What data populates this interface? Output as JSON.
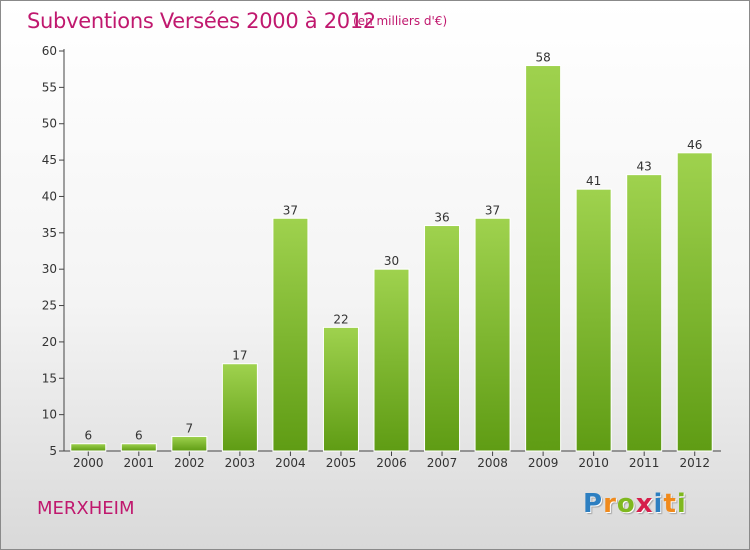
{
  "header": {
    "title": "Subventions Versées 2000 à 2012",
    "unit": "(en milliers d'€)"
  },
  "footer": {
    "commune": "MERXHEIM",
    "logo_letters": [
      "P",
      "r",
      "o",
      "x",
      "i",
      "t",
      "i"
    ],
    "logo_colors": [
      "#2d7fc1",
      "#f08a1c",
      "#7fb81f",
      "#d61f4b",
      "#2d7fc1",
      "#f08a1c",
      "#7fb81f"
    ]
  },
  "colors": {
    "bar_top": "#9fd24e",
    "bar_bottom": "#5f9c14",
    "accent": "#c0186e"
  },
  "chart_data": {
    "type": "bar",
    "title": "Subventions Versées 2000 à 2012",
    "subtitle": "(en milliers d'€)",
    "xlabel": "",
    "ylabel": "",
    "categories": [
      "2000",
      "2001",
      "2002",
      "2003",
      "2004",
      "2005",
      "2006",
      "2007",
      "2008",
      "2009",
      "2010",
      "2011",
      "2012"
    ],
    "values": [
      6,
      6,
      7,
      17,
      37,
      22,
      30,
      36,
      37,
      58,
      41,
      43,
      46
    ],
    "ylim": [
      5,
      60
    ],
    "yticks": [
      5,
      10,
      15,
      20,
      25,
      30,
      35,
      40,
      45,
      50,
      55,
      60
    ],
    "grid": false,
    "legend": "none"
  }
}
